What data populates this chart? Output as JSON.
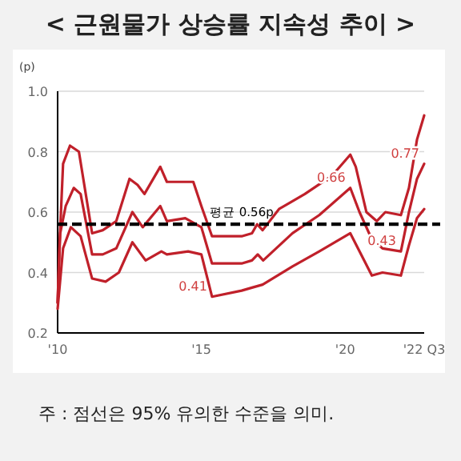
{
  "chart_data": {
    "type": "line",
    "title": "< 근원물가 상승률 지속성 추이 >",
    "ylabel": "(p)",
    "annotations": [
      "주 : 점선은 95% 유의한 수준을 의미.",
      {
        "text": "0.41",
        "x": 2015.37,
        "y": 0.32
      },
      {
        "text": "0.66",
        "x": 2020.18,
        "y": 0.68
      },
      {
        "text": "0.43",
        "x": 2021.94,
        "y": 0.47
      },
      {
        "text": "0.77",
        "x": 2022.75,
        "y": 0.76
      }
    ],
    "xlim": [
      2010,
      2022.75
    ],
    "ylim": [
      0.2,
      1.0
    ],
    "xticks": [
      {
        "value": 2010,
        "label": "'10"
      },
      {
        "value": 2015,
        "label": "'15"
      },
      {
        "value": 2020,
        "label": "'20"
      },
      {
        "value": 2022.75,
        "label": "'22 Q3"
      }
    ],
    "yticks": [
      0.2,
      0.4,
      0.6,
      0.8,
      {
        "value": 1,
        "label": "1.0"
      }
    ],
    "grid": "y",
    "line_style": "solid",
    "marker": "none",
    "ref_lines": [
      {
        "axis": "y",
        "value": 0.56,
        "label": "평균 0.56p",
        "color": "#000000",
        "line_style": "dashed"
      }
    ],
    "series": [
      {
        "color": "#c0202a",
        "x": [
          2010,
          2010.06,
          2010.19,
          2010.43,
          2010.74,
          2011.2,
          2011.57,
          2012.04,
          2012.5,
          2012.78,
          2013.02,
          2013.57,
          2013.8,
          2014.35,
          2014.72,
          2015,
          2015.37,
          2016.4,
          2016.76,
          2016.94,
          2017.13,
          2017.7,
          2018.6,
          2019.54,
          2020.18,
          2020.37,
          2020.74,
          2021.1,
          2021.4,
          2021.94,
          2022.22,
          2022.5,
          2022.75
        ],
        "values": [
          0.3,
          0.48,
          0.76,
          0.82,
          0.8,
          0.53,
          0.54,
          0.57,
          0.71,
          0.69,
          0.66,
          0.75,
          0.7,
          0.7,
          0.7,
          0.62,
          0.52,
          0.52,
          0.53,
          0.56,
          0.54,
          0.61,
          0.66,
          0.72,
          0.79,
          0.75,
          0.6,
          0.57,
          0.6,
          0.59,
          0.68,
          0.84,
          0.92
        ]
      },
      {
        "color": "#c0202a",
        "x": [
          2010,
          2010.09,
          2010.28,
          2010.56,
          2010.8,
          2011.2,
          2011.57,
          2012.04,
          2012.6,
          2012.96,
          2013.57,
          2013.8,
          2014.44,
          2015,
          2015.37,
          2016.4,
          2016.76,
          2016.96,
          2017.15,
          2018.17,
          2019.1,
          2020.18,
          2020.5,
          2020.93,
          2021.3,
          2021.94,
          2022.22,
          2022.5,
          2022.75
        ],
        "values": [
          0.3,
          0.53,
          0.62,
          0.68,
          0.66,
          0.46,
          0.46,
          0.48,
          0.6,
          0.55,
          0.62,
          0.57,
          0.58,
          0.55,
          0.43,
          0.43,
          0.44,
          0.46,
          0.44,
          0.53,
          0.59,
          0.68,
          0.6,
          0.51,
          0.48,
          0.47,
          0.6,
          0.71,
          0.76
        ]
      },
      {
        "color": "#c0202a",
        "x": [
          2010,
          2010.19,
          2010.46,
          2010.8,
          2011.2,
          2011.67,
          2012.13,
          2012.6,
          2013.06,
          2013.61,
          2013.8,
          2014.54,
          2015,
          2015.37,
          2016.4,
          2016.76,
          2017.13,
          2018.17,
          2019.1,
          2020.18,
          2020.5,
          2020.93,
          2021.3,
          2021.94,
          2022.22,
          2022.5,
          2022.75
        ],
        "values": [
          0.28,
          0.48,
          0.55,
          0.52,
          0.38,
          0.37,
          0.4,
          0.5,
          0.44,
          0.47,
          0.46,
          0.47,
          0.46,
          0.32,
          0.34,
          0.35,
          0.36,
          0.42,
          0.47,
          0.53,
          0.47,
          0.39,
          0.4,
          0.39,
          0.49,
          0.58,
          0.61
        ]
      }
    ]
  }
}
